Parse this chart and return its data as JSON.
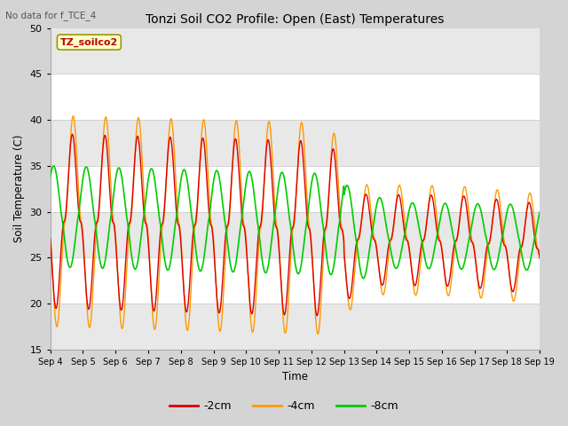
{
  "title": "Tonzi Soil CO2 Profile: Open (East) Temperatures",
  "subtitle": "No data for f_TCE_4",
  "ylabel": "Soil Temperature (C)",
  "xlabel": "Time",
  "ylim": [
    15,
    50
  ],
  "legend_label": "TZ_soilco2",
  "series_labels": [
    "-2cm",
    "-4cm",
    "-8cm"
  ],
  "series_colors": [
    "#dd0000",
    "#ff9900",
    "#00cc00"
  ],
  "plot_bg": "#ffffff",
  "band_color": "#e0e0e0",
  "band_ranges": [
    [
      20,
      25
    ],
    [
      30,
      35
    ],
    [
      40,
      45
    ]
  ],
  "grid_color": "#cccccc",
  "x_tick_labels": [
    "Sep 4",
    "Sep 5",
    "Sep 6",
    "Sep 7",
    "Sep 8",
    "Sep 9",
    "Sep 10",
    "Sep 11",
    "Sep 12",
    "Sep 13",
    "Sep 14",
    "Sep 15",
    "Sep 16",
    "Sep 17",
    "Sep 18",
    "Sep 19"
  ],
  "n_days": 15,
  "points_per_day": 144
}
